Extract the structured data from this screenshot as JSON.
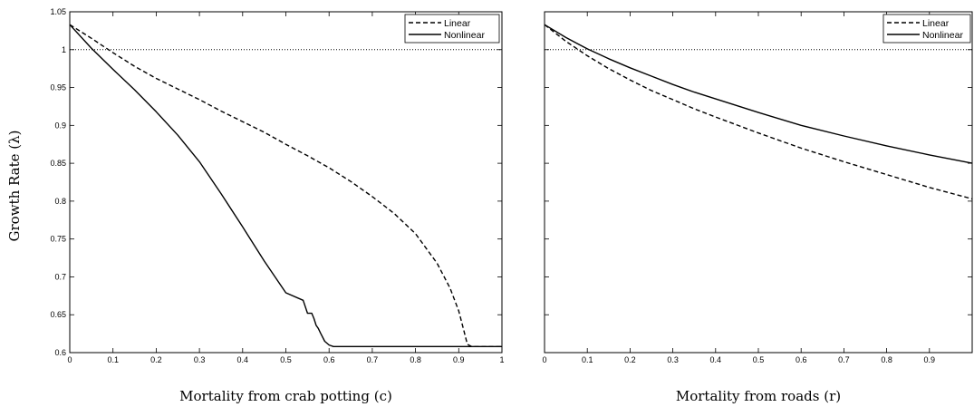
{
  "figure": {
    "ylabel": "Growth Rate (λ)",
    "reference_line_y": 1
  },
  "chart_data": [
    {
      "type": "line",
      "xlabel": "Mortality from crab potting (c)",
      "ylabel": "Growth Rate (λ)",
      "xlim": [
        0,
        1
      ],
      "ylim": [
        0.6,
        1.05
      ],
      "xticks": [
        0,
        0.1,
        0.2,
        0.3,
        0.4,
        0.5,
        0.6,
        0.7,
        0.8,
        0.9,
        1
      ],
      "xtick_labels": [
        "0",
        "0.1",
        "0.2",
        "0.3",
        "0.4",
        "0.5",
        "0.6",
        "0.7",
        "0.8",
        "0.9",
        "1"
      ],
      "yticks": [
        0.6,
        0.65,
        0.7,
        0.75,
        0.8,
        0.85,
        0.9,
        0.95,
        1,
        1.05
      ],
      "ytick_labels": [
        "0.6",
        "0.65",
        "0.7",
        "0.75",
        "0.8",
        "0.85",
        "0.9",
        "0.95",
        "1",
        "1.05"
      ],
      "reference_line": {
        "y": 1,
        "style": "dotted"
      },
      "legend_position": "top-right",
      "series": [
        {
          "name": "Linear",
          "style": "dashed",
          "x": [
            0,
            0.05,
            0.1,
            0.15,
            0.2,
            0.25,
            0.3,
            0.35,
            0.4,
            0.45,
            0.5,
            0.55,
            0.6,
            0.65,
            0.7,
            0.75,
            0.8,
            0.85,
            0.88,
            0.9,
            0.91,
            0.92,
            0.93,
            1.0
          ],
          "y": [
            1.033,
            1.015,
            0.996,
            0.978,
            0.962,
            0.948,
            0.934,
            0.919,
            0.905,
            0.891,
            0.875,
            0.86,
            0.844,
            0.826,
            0.806,
            0.784,
            0.757,
            0.718,
            0.685,
            0.655,
            0.633,
            0.611,
            0.608,
            0.608
          ]
        },
        {
          "name": "Nonlinear",
          "style": "solid",
          "x": [
            0,
            0.05,
            0.1,
            0.15,
            0.2,
            0.25,
            0.3,
            0.35,
            0.4,
            0.45,
            0.5,
            0.54,
            0.55,
            0.56,
            0.565,
            0.57,
            0.575,
            0.58,
            0.59,
            0.6,
            0.61,
            0.62,
            0.7,
            0.8,
            0.9,
            1.0
          ],
          "y": [
            1.033,
            1.002,
            0.974,
            0.947,
            0.918,
            0.887,
            0.852,
            0.81,
            0.766,
            0.721,
            0.679,
            0.669,
            0.652,
            0.652,
            0.645,
            0.636,
            0.632,
            0.626,
            0.615,
            0.61,
            0.608,
            0.608,
            0.608,
            0.608,
            0.608,
            0.608
          ]
        }
      ]
    },
    {
      "type": "line",
      "xlabel": "Mortality from roads (r)",
      "xlim": [
        0,
        1
      ],
      "ylim": [
        0.6,
        1.05
      ],
      "xticks": [
        0,
        0.1,
        0.2,
        0.3,
        0.4,
        0.5,
        0.6,
        0.7,
        0.8,
        0.9
      ],
      "xtick_labels": [
        "0",
        "0.1",
        "0.2",
        "0.3",
        "0.4",
        "0.5",
        "0.6",
        "0.7",
        "0.8",
        "0.9"
      ],
      "yticks": [
        0.6,
        0.65,
        0.7,
        0.75,
        0.8,
        0.85,
        0.9,
        0.95,
        1,
        1.05
      ],
      "reference_line": {
        "y": 1,
        "style": "dotted"
      },
      "legend_position": "top-right",
      "series": [
        {
          "name": "Linear",
          "style": "dashed",
          "x": [
            0,
            0.05,
            0.1,
            0.15,
            0.2,
            0.25,
            0.3,
            0.35,
            0.4,
            0.5,
            0.6,
            0.7,
            0.8,
            0.9,
            1.0
          ],
          "y": [
            1.033,
            1.011,
            0.992,
            0.975,
            0.96,
            0.946,
            0.934,
            0.922,
            0.911,
            0.89,
            0.87,
            0.852,
            0.835,
            0.818,
            0.803
          ]
        },
        {
          "name": "Nonlinear",
          "style": "solid",
          "x": [
            0,
            0.05,
            0.1,
            0.15,
            0.2,
            0.25,
            0.3,
            0.35,
            0.4,
            0.5,
            0.6,
            0.7,
            0.8,
            0.9,
            1.0
          ],
          "y": [
            1.033,
            1.016,
            1.001,
            0.988,
            0.976,
            0.965,
            0.954,
            0.944,
            0.935,
            0.917,
            0.9,
            0.886,
            0.873,
            0.861,
            0.85
          ]
        }
      ]
    }
  ]
}
